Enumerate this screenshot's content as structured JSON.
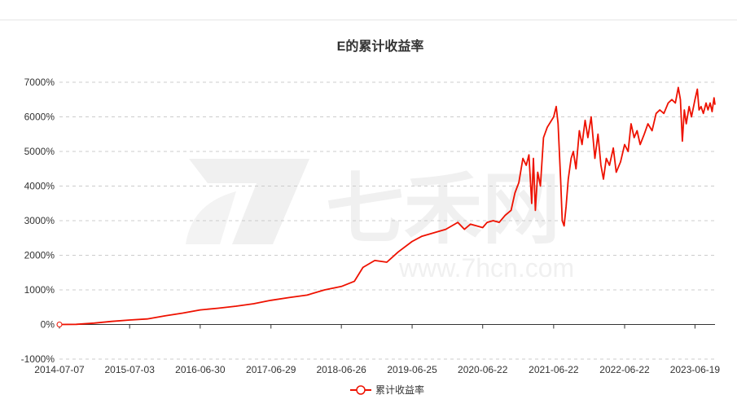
{
  "watermark": {
    "brand": "七禾网",
    "url": "www.7hcn.com"
  },
  "chart_data": {
    "type": "line",
    "title": "E的累计收益率",
    "xlabel": "",
    "ylabel": "",
    "ylim": [
      -1000,
      7000
    ],
    "yticks": [
      "-1000%",
      "0%",
      "1000%",
      "2000%",
      "3000%",
      "4000%",
      "5000%",
      "6000%",
      "7000%"
    ],
    "ytick_values": [
      -1000,
      0,
      1000,
      2000,
      3000,
      4000,
      5000,
      6000,
      7000
    ],
    "xticks": [
      "2014-07-07",
      "2015-07-03",
      "2016-06-30",
      "2017-06-29",
      "2018-06-26",
      "2019-06-25",
      "2020-06-22",
      "2021-06-22",
      "2022-06-22",
      "2023-06-19"
    ],
    "x_end": "2023-09-30",
    "grid": "horizontal dashed",
    "legend_position": "bottom-center",
    "series": [
      {
        "name": "累计收益率",
        "color": "#ee1100",
        "points": [
          [
            "2014-07-07",
            0
          ],
          [
            "2014-10-01",
            5
          ],
          [
            "2015-01-01",
            40
          ],
          [
            "2015-04-01",
            90
          ],
          [
            "2015-07-03",
            130
          ],
          [
            "2015-10-01",
            160
          ],
          [
            "2016-01-01",
            250
          ],
          [
            "2016-04-01",
            330
          ],
          [
            "2016-06-30",
            420
          ],
          [
            "2016-10-01",
            470
          ],
          [
            "2017-01-01",
            530
          ],
          [
            "2017-04-01",
            600
          ],
          [
            "2017-06-29",
            700
          ],
          [
            "2017-10-01",
            780
          ],
          [
            "2018-01-01",
            850
          ],
          [
            "2018-04-01",
            1000
          ],
          [
            "2018-06-26",
            1100
          ],
          [
            "2018-09-01",
            1250
          ],
          [
            "2018-10-15",
            1650
          ],
          [
            "2018-12-15",
            1850
          ],
          [
            "2019-02-15",
            1800
          ],
          [
            "2019-04-15",
            2100
          ],
          [
            "2019-06-25",
            2400
          ],
          [
            "2019-08-15",
            2550
          ],
          [
            "2019-10-15",
            2650
          ],
          [
            "2019-12-15",
            2750
          ],
          [
            "2020-02-15",
            2950
          ],
          [
            "2020-03-20",
            2750
          ],
          [
            "2020-04-20",
            2900
          ],
          [
            "2020-06-22",
            2800
          ],
          [
            "2020-07-15",
            2950
          ],
          [
            "2020-08-15",
            3000
          ],
          [
            "2020-09-15",
            2950
          ],
          [
            "2020-10-15",
            3150
          ],
          [
            "2020-11-15",
            3300
          ],
          [
            "2020-12-05",
            3800
          ],
          [
            "2020-12-25",
            4100
          ],
          [
            "2021-01-15",
            4800
          ],
          [
            "2021-02-01",
            4600
          ],
          [
            "2021-02-15",
            4900
          ],
          [
            "2021-03-01",
            3500
          ],
          [
            "2021-03-10",
            4800
          ],
          [
            "2021-03-20",
            3300
          ],
          [
            "2021-04-01",
            4400
          ],
          [
            "2021-04-15",
            4000
          ],
          [
            "2021-05-01",
            5400
          ],
          [
            "2021-05-20",
            5700
          ],
          [
            "2021-06-22",
            6000
          ],
          [
            "2021-07-05",
            6300
          ],
          [
            "2021-07-15",
            5800
          ],
          [
            "2021-07-28",
            4200
          ],
          [
            "2021-08-05",
            3000
          ],
          [
            "2021-08-15",
            2850
          ],
          [
            "2021-08-25",
            3400
          ],
          [
            "2021-09-05",
            4200
          ],
          [
            "2021-09-20",
            4800
          ],
          [
            "2021-10-01",
            5000
          ],
          [
            "2021-10-15",
            4500
          ],
          [
            "2021-11-01",
            5600
          ],
          [
            "2021-11-15",
            5200
          ],
          [
            "2021-12-01",
            5900
          ],
          [
            "2021-12-15",
            5400
          ],
          [
            "2022-01-01",
            6000
          ],
          [
            "2022-01-20",
            4800
          ],
          [
            "2022-02-05",
            5500
          ],
          [
            "2022-02-20",
            4600
          ],
          [
            "2022-03-05",
            4200
          ],
          [
            "2022-03-20",
            4800
          ],
          [
            "2022-04-05",
            4600
          ],
          [
            "2022-04-25",
            5100
          ],
          [
            "2022-05-10",
            4400
          ],
          [
            "2022-06-01",
            4700
          ],
          [
            "2022-06-22",
            5200
          ],
          [
            "2022-07-10",
            5000
          ],
          [
            "2022-07-25",
            5800
          ],
          [
            "2022-08-10",
            5400
          ],
          [
            "2022-08-25",
            5600
          ],
          [
            "2022-09-10",
            5200
          ],
          [
            "2022-10-01",
            5500
          ],
          [
            "2022-10-20",
            5800
          ],
          [
            "2022-11-10",
            5600
          ],
          [
            "2022-12-01",
            6100
          ],
          [
            "2022-12-20",
            6200
          ],
          [
            "2023-01-10",
            6100
          ],
          [
            "2023-02-01",
            6400
          ],
          [
            "2023-02-20",
            6500
          ],
          [
            "2023-03-10",
            6400
          ],
          [
            "2023-03-25",
            6850
          ],
          [
            "2023-04-05",
            6500
          ],
          [
            "2023-04-15",
            5300
          ],
          [
            "2023-04-25",
            6200
          ],
          [
            "2023-05-05",
            5800
          ],
          [
            "2023-05-20",
            6300
          ],
          [
            "2023-06-01",
            6000
          ],
          [
            "2023-06-19",
            6500
          ],
          [
            "2023-07-01",
            6800
          ],
          [
            "2023-07-10",
            6200
          ],
          [
            "2023-07-20",
            6300
          ],
          [
            "2023-08-01",
            6100
          ],
          [
            "2023-08-15",
            6400
          ],
          [
            "2023-08-25",
            6200
          ],
          [
            "2023-09-05",
            6400
          ],
          [
            "2023-09-15",
            6150
          ],
          [
            "2023-09-25",
            6550
          ],
          [
            "2023-09-30",
            6350
          ]
        ]
      }
    ]
  }
}
